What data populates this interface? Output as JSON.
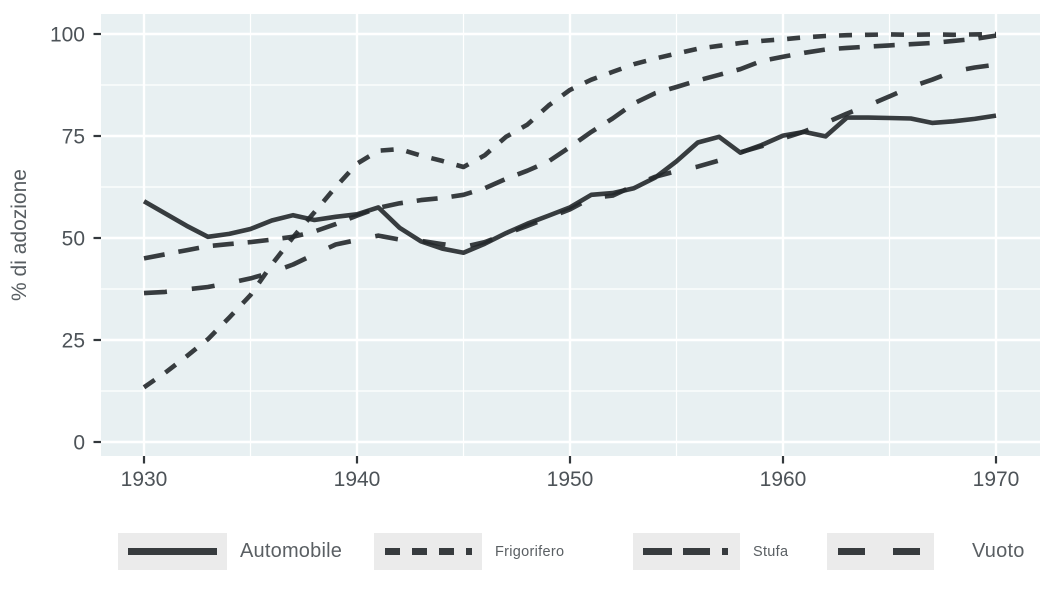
{
  "chart_data": {
    "type": "line",
    "title": "",
    "xlabel": "",
    "ylabel": "% di adozione",
    "x_ticks": [
      1930,
      1940,
      1950,
      1960,
      1970
    ],
    "y_ticks": [
      0,
      25,
      50,
      75,
      100
    ],
    "xlim": [
      1930,
      1970
    ],
    "ylim": [
      0,
      100
    ],
    "grid": "white major and minor gridlines on shaded panel",
    "legend_position": "bottom",
    "years": [
      1930,
      1931,
      1932,
      1933,
      1934,
      1935,
      1936,
      1937,
      1938,
      1939,
      1940,
      1941,
      1942,
      1943,
      1944,
      1945,
      1946,
      1947,
      1948,
      1949,
      1950,
      1951,
      1952,
      1953,
      1954,
      1955,
      1956,
      1957,
      1958,
      1959,
      1960,
      1961,
      1962,
      1963,
      1964,
      1965,
      1966,
      1967,
      1968,
      1969,
      1970
    ],
    "series": [
      {
        "name": "Automobile",
        "linetype": "solid",
        "values": [
          59,
          56,
          53,
          50.3,
          51,
          52.2,
          54.3,
          55.6,
          54.4,
          55.2,
          55.8,
          57.5,
          52.5,
          49.2,
          47.4,
          46.4,
          48.6,
          51.2,
          53.5,
          55.5,
          57.5,
          60.6,
          61,
          62.2,
          64.8,
          68.8,
          73.4,
          74.8,
          70.9,
          72.8,
          75.1,
          76,
          74.9,
          79.5,
          79.5,
          79.4,
          79.3,
          78.2,
          78.6,
          79.2,
          80
        ]
      },
      {
        "name": "Frigorifero",
        "linetype": "dotted",
        "values": [
          13.4,
          17,
          21,
          25.2,
          30.5,
          36,
          43.5,
          50.2,
          56.3,
          62.5,
          68.2,
          71.4,
          71.8,
          70.2,
          68.9,
          67.4,
          70.3,
          74.8,
          77.8,
          82.5,
          86.3,
          88.8,
          90.7,
          92.6,
          94,
          95.2,
          96.4,
          97.1,
          97.8,
          98.3,
          98.7,
          99.2,
          99.5,
          99.7,
          99.8,
          99.9,
          99.8,
          99.9,
          99.8,
          99.9,
          100
        ]
      },
      {
        "name": "Stufa",
        "linetype": "dashed",
        "values": [
          45,
          46,
          47,
          48,
          48.5,
          49,
          49.6,
          50.3,
          51.6,
          53.4,
          55.5,
          57.4,
          58.5,
          59.3,
          59.8,
          60.6,
          62.2,
          64.5,
          66.5,
          68.8,
          72.3,
          76,
          79.3,
          83,
          85.5,
          87,
          88.6,
          90,
          91.4,
          93.4,
          94.4,
          95.4,
          96.2,
          96.6,
          96.9,
          97.2,
          97.5,
          97.8,
          98.3,
          98.8,
          99.6
        ]
      },
      {
        "name": "Vuoto",
        "linetype": "longdash",
        "values": [
          36.5,
          36.8,
          37.4,
          38,
          39,
          40.1,
          41.6,
          43.5,
          46,
          48.4,
          49.5,
          50.6,
          49.6,
          49.3,
          48.5,
          47.8,
          49,
          51,
          53,
          55,
          57,
          59.8,
          60.4,
          62.8,
          65,
          66.4,
          67.5,
          69,
          71,
          72.5,
          74.4,
          76.1,
          78.2,
          80.5,
          82.5,
          84.7,
          87,
          88.8,
          90.8,
          91.8,
          92.5
        ]
      }
    ]
  },
  "colors": {
    "line": "#23282b",
    "panel_bg": "#e8f0f2",
    "grid": "#ffffff",
    "axis_tick": "#33383c",
    "tick_text": "#4d5358",
    "axis_title_text": "#575d61",
    "legend_key_bg": "#ebebeb",
    "legend_text": "#5a5f63",
    "page_bg": "#ffffff"
  }
}
